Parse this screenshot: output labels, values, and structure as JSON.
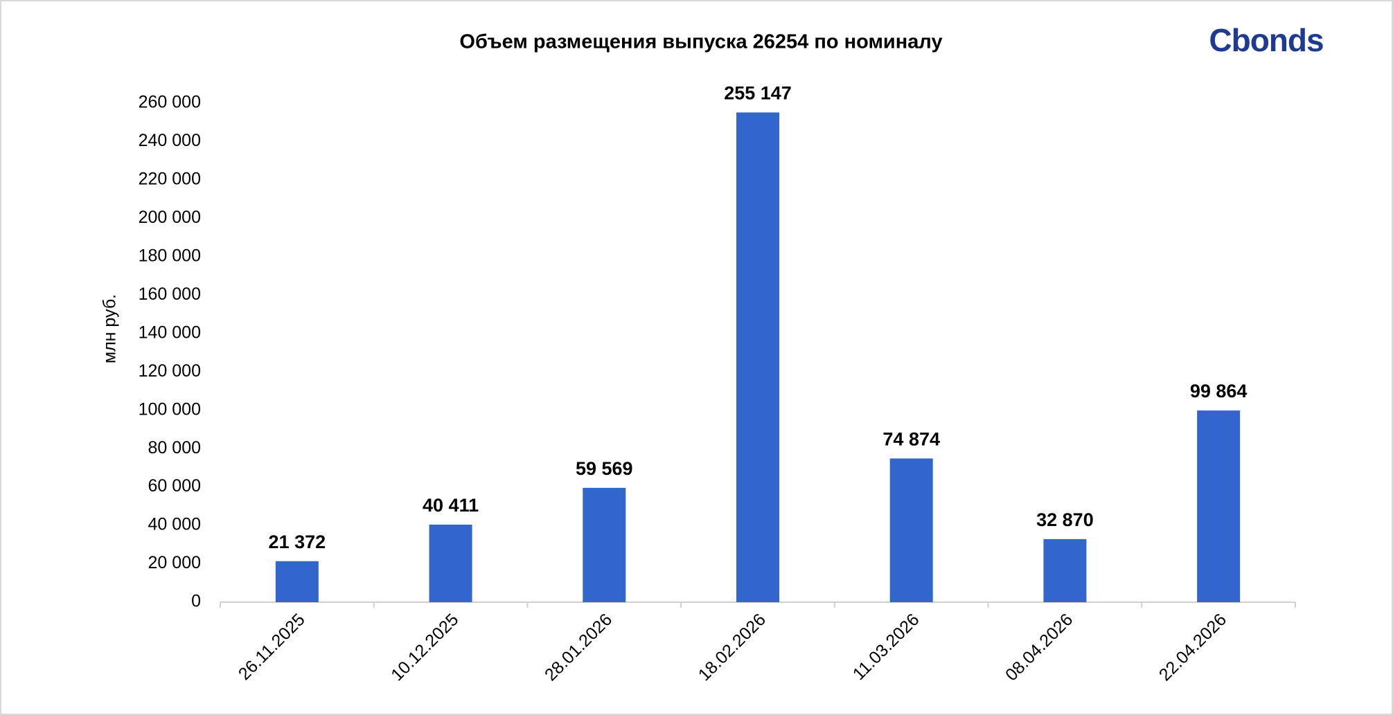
{
  "chart_data": {
    "type": "bar",
    "title": "Объем размещения выпуска 26254 по номиналу",
    "logo": "Cbonds",
    "y_label": "млн руб.",
    "categories": [
      "26.11.2025",
      "10.12.2025",
      "28.01.2026",
      "18.02.2026",
      "11.03.2026",
      "08.04.2026",
      "22.04.2026"
    ],
    "values": [
      21372,
      40411,
      59569,
      255147,
      74874,
      32870,
      99864
    ],
    "value_labels": [
      "21 372",
      "40 411",
      "59 569",
      "255 147",
      "74 874",
      "32 870",
      "99 864"
    ],
    "color": "#3366cc",
    "ylim": [
      0,
      260000
    ],
    "yticks": [
      0,
      {
        "value": 20000,
        "label": "20 000"
      },
      {
        "value": 40000,
        "label": "40 000"
      },
      {
        "value": 60000,
        "label": "60 000"
      },
      {
        "value": 80000,
        "label": "80 000"
      },
      {
        "value": 100000,
        "label": "100 000"
      },
      {
        "value": 120000,
        "label": "120 000"
      },
      {
        "value": 140000,
        "label": "140 000"
      },
      {
        "value": 160000,
        "label": "160 000"
      },
      {
        "value": 180000,
        "label": "180 000"
      },
      {
        "value": 200000,
        "label": "200 000"
      },
      {
        "value": 220000,
        "label": "220 000"
      },
      {
        "value": 240000,
        "label": "240 000"
      },
      {
        "value": 260000,
        "label": "260 000"
      }
    ],
    "grid": false
  }
}
